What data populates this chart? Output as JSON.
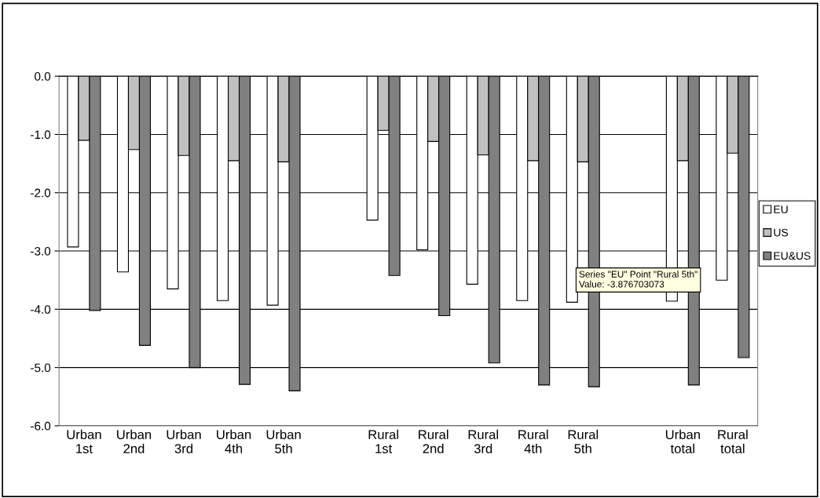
{
  "chart_data": {
    "type": "bar",
    "categories": [
      "Urban 1st",
      "Urban 2nd",
      "Urban 3rd",
      "Urban 4th",
      "Urban 5th",
      null,
      "Rural 1st",
      "Rural 2nd",
      "Rural 3rd",
      "Rural 4th",
      "Rural 5th",
      null,
      "Urban total",
      "Rural total"
    ],
    "series": [
      {
        "name": "EU",
        "color": "#ffffff",
        "values": [
          -2.93,
          -3.36,
          -3.65,
          -3.85,
          -3.93,
          null,
          -2.47,
          -2.98,
          -3.57,
          -3.85,
          -3.88,
          null,
          -3.86,
          -3.5
        ]
      },
      {
        "name": "US",
        "color": "#c0c0c0",
        "values": [
          -1.1,
          -1.26,
          -1.36,
          -1.45,
          -1.47,
          null,
          -0.93,
          -1.12,
          -1.35,
          -1.45,
          -1.47,
          null,
          -1.45,
          -1.32
        ]
      },
      {
        "name": "EU&US",
        "color": "#808080",
        "values": [
          -4.02,
          -4.62,
          -5.0,
          -5.29,
          -5.4,
          null,
          -3.42,
          -4.11,
          -4.92,
          -5.3,
          -5.33,
          null,
          -5.3,
          -4.83
        ]
      }
    ],
    "ylim": [
      -6,
      0
    ],
    "yticks": [
      {
        "value": 0,
        "label": "0.0"
      },
      {
        "value": -1,
        "label": "-1.0"
      },
      {
        "value": -2,
        "label": "-2.0"
      },
      {
        "value": -3,
        "label": "-3.0"
      },
      {
        "value": -4,
        "label": "-4.0"
      },
      {
        "value": -5,
        "label": "-5.0"
      },
      {
        "value": -6,
        "label": "-6.0"
      }
    ],
    "grid": "y",
    "legend": "right",
    "annotations": [
      "Series \"EU\" Point \"Rural 5th\"\nValue: -3.876703073"
    ]
  }
}
